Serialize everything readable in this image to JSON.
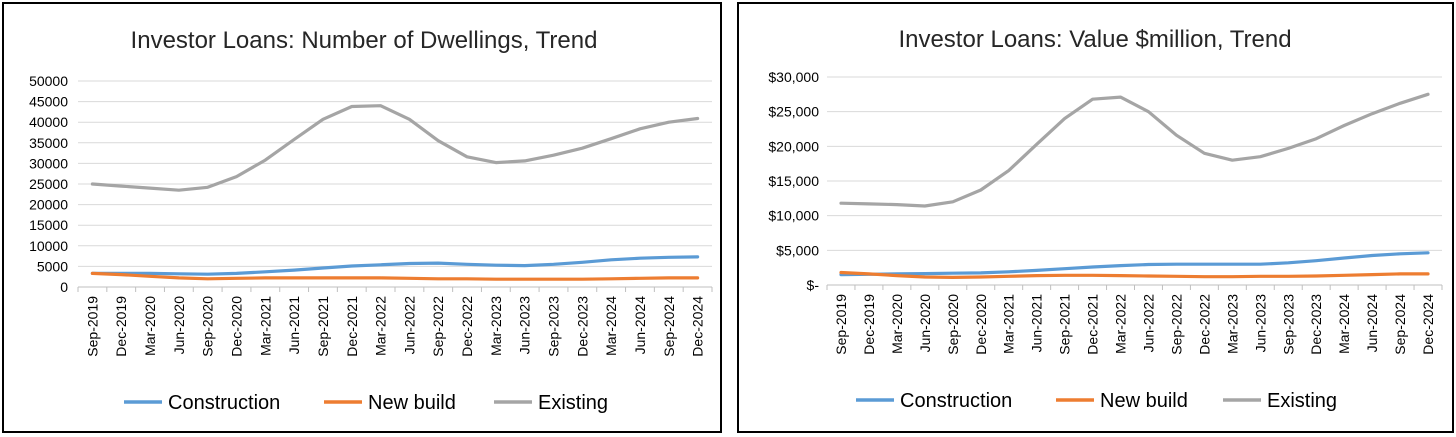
{
  "chart_data": [
    {
      "type": "line",
      "title": "Investor Loans: Number of Dwellings, Trend",
      "xlabel": "",
      "ylabel": "",
      "ylim": [
        0,
        50000
      ],
      "y_ticks": [
        "50000",
        "45000",
        "40000",
        "35000",
        "30000",
        "25000",
        "20000",
        "15000",
        "10000",
        "5000",
        "0"
      ],
      "y_tick_values": [
        50000,
        45000,
        40000,
        35000,
        30000,
        25000,
        20000,
        15000,
        10000,
        5000,
        0
      ],
      "grid": true,
      "legend": "bottom",
      "categories": [
        "Sep-2019",
        "Dec-2019",
        "Mar-2020",
        "Jun-2020",
        "Sep-2020",
        "Dec-2020",
        "Mar-2021",
        "Jun-2021",
        "Sep-2021",
        "Dec-2021",
        "Mar-2022",
        "Jun-2022",
        "Sep-2022",
        "Dec-2022",
        "Mar-2023",
        "Jun-2023",
        "Sep-2023",
        "Dec-2023",
        "Mar-2024",
        "Jun-2024",
        "Sep-2024",
        "Dec-2024"
      ],
      "series": [
        {
          "name": "Construction",
          "color": "#5B9BD5",
          "values": [
            3300,
            3300,
            3300,
            3200,
            3100,
            3300,
            3700,
            4100,
            4600,
            5100,
            5400,
            5700,
            5800,
            5500,
            5300,
            5200,
            5500,
            6000,
            6600,
            7000,
            7200,
            7300
          ]
        },
        {
          "name": "New build",
          "color": "#ED7D31",
          "values": [
            3300,
            3000,
            2600,
            2200,
            2000,
            2100,
            2200,
            2200,
            2200,
            2200,
            2200,
            2100,
            2000,
            2000,
            1900,
            1900,
            1900,
            1900,
            2000,
            2100,
            2200,
            2200
          ]
        },
        {
          "name": "Existing",
          "color": "#A5A5A5",
          "values": [
            25000,
            24500,
            24000,
            23500,
            24200,
            26800,
            30800,
            35800,
            40700,
            43800,
            44000,
            40700,
            35500,
            31600,
            30200,
            30600,
            32000,
            33700,
            36000,
            38400,
            40000,
            40900
          ]
        }
      ]
    },
    {
      "type": "line",
      "title": "Investor Loans: Value $million, Trend",
      "xlabel": "",
      "ylabel": "",
      "ylim": [
        0,
        30000
      ],
      "y_ticks": [
        "$30,000",
        "$25,000",
        "$20,000",
        "$15,000",
        "$10,000",
        "$5,000",
        "$-"
      ],
      "y_tick_values": [
        30000,
        25000,
        20000,
        15000,
        10000,
        5000,
        0
      ],
      "grid": true,
      "legend": "bottom",
      "categories": [
        "Sep-2019",
        "Dec-2019",
        "Mar-2020",
        "Jun-2020",
        "Sep-2020",
        "Dec-2020",
        "Mar-2021",
        "Jun-2021",
        "Sep-2021",
        "Dec-2021",
        "Mar-2022",
        "Jun-2022",
        "Sep-2022",
        "Dec-2022",
        "Mar-2023",
        "Jun-2023",
        "Sep-2023",
        "Dec-2023",
        "Mar-2024",
        "Jun-2024",
        "Sep-2024",
        "Dec-2024"
      ],
      "series": [
        {
          "name": "Construction",
          "color": "#5B9BD5",
          "values": [
            1500,
            1550,
            1600,
            1650,
            1700,
            1750,
            1900,
            2100,
            2350,
            2600,
            2800,
            2950,
            3000,
            3000,
            3000,
            3000,
            3200,
            3500,
            3900,
            4250,
            4500,
            4650
          ]
        },
        {
          "name": "New build",
          "color": "#ED7D31",
          "values": [
            1800,
            1600,
            1350,
            1150,
            1100,
            1150,
            1250,
            1350,
            1400,
            1400,
            1350,
            1300,
            1250,
            1200,
            1200,
            1250,
            1250,
            1300,
            1400,
            1500,
            1600,
            1600
          ]
        },
        {
          "name": "Existing",
          "color": "#A5A5A5",
          "values": [
            11800,
            11700,
            11600,
            11400,
            12000,
            13700,
            16500,
            20300,
            24000,
            26800,
            27100,
            25000,
            21600,
            19000,
            18000,
            18500,
            19700,
            21100,
            23000,
            24700,
            26200,
            27500
          ]
        }
      ]
    }
  ]
}
